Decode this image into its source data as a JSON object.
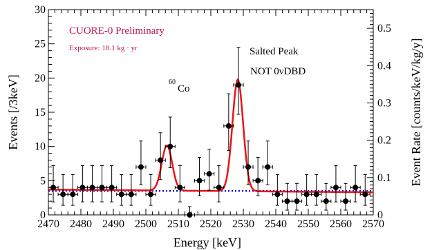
{
  "chart_data": {
    "type": "scatter",
    "xlabel": "Energy [keV]",
    "ylabel": "Events [/3keV]",
    "y2label": "Event Rate [counts/keV/kg/y]",
    "xlim": [
      2470,
      2570
    ],
    "ylim": [
      0,
      30
    ],
    "y2lim": [
      0,
      0.55
    ],
    "x_ticks": [
      2470,
      2480,
      2490,
      2500,
      2510,
      2520,
      2530,
      2540,
      2550,
      2560,
      2570
    ],
    "y_ticks": [
      0,
      5,
      10,
      15,
      20,
      25,
      30
    ],
    "y2_ticks": [
      0,
      0.1,
      0.2,
      0.3,
      0.4,
      0.5
    ],
    "y2_tick_labels": [
      "0",
      "0.1",
      "0.2",
      "0.3",
      "0.4",
      "0.5"
    ],
    "annotations": {
      "preliminary": "CUORE-0 Preliminary",
      "exposure": "Exposure: 18.1 kg · yr",
      "co_sup": "60",
      "co_label": "Co",
      "salted_line1": "Salted Peak",
      "salted_line2": "NOT 0νDBD"
    },
    "colors": {
      "fit": "#ee1111",
      "background": "#1111ee",
      "annotation": "#c0124a",
      "points": "#000000"
    },
    "series": [
      {
        "kind": "data",
        "x_halfwidth": 1.5,
        "points": [
          {
            "x": 2471.5,
            "y": 4,
            "lo": 2.1,
            "hi": 3.2
          },
          {
            "x": 2474.5,
            "y": 3,
            "lo": 1.6,
            "hi": 2.9
          },
          {
            "x": 2477.5,
            "y": 3,
            "lo": 1.6,
            "hi": 2.9
          },
          {
            "x": 2480.5,
            "y": 4,
            "lo": 2.1,
            "hi": 3.2
          },
          {
            "x": 2483.5,
            "y": 4,
            "lo": 2.1,
            "hi": 3.2
          },
          {
            "x": 2486.5,
            "y": 4,
            "lo": 2.1,
            "hi": 3.2
          },
          {
            "x": 2489.5,
            "y": 4,
            "lo": 2.1,
            "hi": 3.2
          },
          {
            "x": 2492.5,
            "y": 3,
            "lo": 1.6,
            "hi": 2.9
          },
          {
            "x": 2495.5,
            "y": 3,
            "lo": 1.6,
            "hi": 2.9
          },
          {
            "x": 2498.5,
            "y": 7,
            "lo": 2.6,
            "hi": 3.8
          },
          {
            "x": 2501.5,
            "y": 3,
            "lo": 1.6,
            "hi": 2.9
          },
          {
            "x": 2504.5,
            "y": 8,
            "lo": 2.8,
            "hi": 4.0
          },
          {
            "x": 2507.5,
            "y": 10,
            "lo": 3.1,
            "hi": 4.3
          },
          {
            "x": 2510.5,
            "y": 4,
            "lo": 2.1,
            "hi": 3.2
          },
          {
            "x": 2513.5,
            "y": 0,
            "lo": 0,
            "hi": 1.2
          },
          {
            "x": 2516.5,
            "y": 5,
            "lo": 2.2,
            "hi": 3.4
          },
          {
            "x": 2519.5,
            "y": 6,
            "lo": 2.4,
            "hi": 3.6
          },
          {
            "x": 2522.5,
            "y": 4,
            "lo": 2.1,
            "hi": 3.2
          },
          {
            "x": 2525.5,
            "y": 13,
            "lo": 3.6,
            "hi": 4.7
          },
          {
            "x": 2528.5,
            "y": 19,
            "lo": 4.3,
            "hi": 5.5
          },
          {
            "x": 2531.5,
            "y": 7,
            "lo": 2.6,
            "hi": 3.8
          },
          {
            "x": 2534.5,
            "y": 5,
            "lo": 2.2,
            "hi": 3.4
          },
          {
            "x": 2537.5,
            "y": 7,
            "lo": 2.6,
            "hi": 3.8
          },
          {
            "x": 2540.5,
            "y": 3,
            "lo": 1.6,
            "hi": 2.9
          },
          {
            "x": 2543.5,
            "y": 2,
            "lo": 1.3,
            "hi": 2.6
          },
          {
            "x": 2546.5,
            "y": 2,
            "lo": 1.3,
            "hi": 2.6
          },
          {
            "x": 2549.5,
            "y": 3,
            "lo": 1.6,
            "hi": 2.9
          },
          {
            "x": 2552.5,
            "y": 3,
            "lo": 1.6,
            "hi": 2.9
          },
          {
            "x": 2555.5,
            "y": 2,
            "lo": 1.3,
            "hi": 2.6
          },
          {
            "x": 2558.5,
            "y": 4,
            "lo": 2.1,
            "hi": 3.2
          },
          {
            "x": 2561.5,
            "y": 2,
            "lo": 1.3,
            "hi": 2.6
          },
          {
            "x": 2564.5,
            "y": 4,
            "lo": 2.1,
            "hi": 3.2
          },
          {
            "x": 2567.5,
            "y": 3,
            "lo": 1.6,
            "hi": 2.9
          }
        ]
      },
      {
        "kind": "fit",
        "baseline": 3.5,
        "slope": -0.004,
        "pivot": 2520,
        "peaks": [
          {
            "center": 2506.5,
            "amplitude": 6.6,
            "sigma": 1.6
          },
          {
            "center": 2528.3,
            "amplitude": 16.3,
            "sigma": 1.65
          }
        ]
      },
      {
        "kind": "background",
        "level": 3.5
      }
    ]
  }
}
